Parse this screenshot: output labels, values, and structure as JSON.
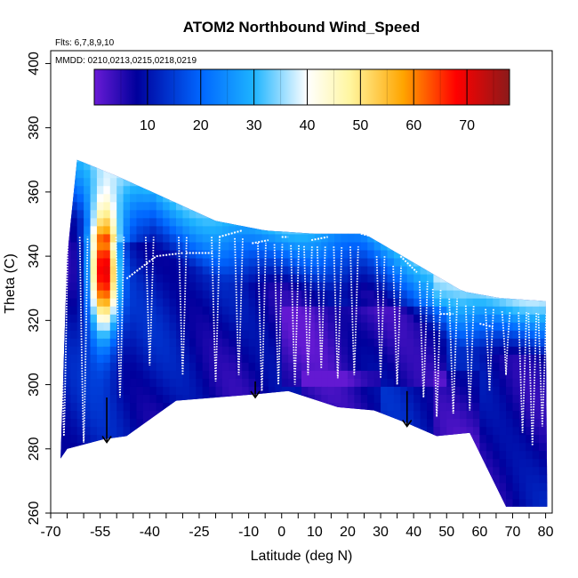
{
  "chart_data": {
    "type": "heatmap",
    "title": "ATOM2 Northbound Wind_Speed",
    "subtitle_flights": "Flts: 6,7,8,9,10",
    "subtitle_dates": "MMDD: 0210,0213,0215,0218,0219",
    "xlabel": "Latitude (deg N)",
    "ylabel": "Theta (C)",
    "xlim": [
      -70,
      82
    ],
    "ylim": [
      260,
      404
    ],
    "x_major_ticks": [
      -70,
      -55,
      -40,
      -25,
      -10,
      0,
      10,
      20,
      30,
      40,
      50,
      60,
      70,
      80
    ],
    "x_minor_step": 5,
    "y_ticks": [
      260,
      280,
      300,
      320,
      340,
      360,
      380,
      400
    ],
    "colorbar": {
      "range": [
        0,
        78
      ],
      "ticks": [
        10,
        20,
        30,
        40,
        50,
        60,
        70
      ],
      "colors": [
        "#6a1bd6",
        "#00009c",
        "#0066ff",
        "#1eb4ff",
        "#ffffff",
        "#fff6a0",
        "#ffa500",
        "#ff0000",
        "#8b1a1a"
      ],
      "color_stops": [
        0,
        8,
        20,
        30,
        40,
        48,
        58,
        68,
        78
      ]
    },
    "ceiling_theta": [
      {
        "lat": -62,
        "theta": 370
      },
      {
        "lat": -50,
        "theta": 365
      },
      {
        "lat": -35,
        "theta": 358
      },
      {
        "lat": -20,
        "theta": 351
      },
      {
        "lat": -5,
        "theta": 348
      },
      {
        "lat": 10,
        "theta": 347
      },
      {
        "lat": 25,
        "theta": 347
      },
      {
        "lat": 40,
        "theta": 338
      },
      {
        "lat": 55,
        "theta": 329
      },
      {
        "lat": 66,
        "theta": 327
      },
      {
        "lat": 80,
        "theta": 326
      }
    ],
    "floor_theta": [
      {
        "lat": -67,
        "theta": 277
      },
      {
        "lat": -65,
        "theta": 280
      },
      {
        "lat": -54,
        "theta": 283
      },
      {
        "lat": -47,
        "theta": 284
      },
      {
        "lat": -32,
        "theta": 295
      },
      {
        "lat": -8,
        "theta": 297
      },
      {
        "lat": 2,
        "theta": 298
      },
      {
        "lat": 17,
        "theta": 293
      },
      {
        "lat": 28,
        "theta": 292
      },
      {
        "lat": 38,
        "theta": 288
      },
      {
        "lat": 47,
        "theta": 284
      },
      {
        "lat": 57,
        "theta": 285
      },
      {
        "lat": 68,
        "theta": 262
      },
      {
        "lat": 82,
        "theta": 262
      }
    ],
    "jet": {
      "lat": -54,
      "theta": 335,
      "peak_speed": 72
    },
    "arrows": [
      {
        "lat": -53,
        "theta_top": 296,
        "theta_tip": 282
      },
      {
        "lat": -8,
        "theta_top": 301,
        "theta_tip": 296
      },
      {
        "lat": 38,
        "theta_top": 298,
        "theta_tip": 287
      }
    ],
    "track_top_segments": [
      {
        "lat0": -47,
        "lat1": -38,
        "theta0": 333,
        "theta1": 340
      },
      {
        "lat0": -38,
        "lat1": -30,
        "theta0": 340,
        "theta1": 341
      },
      {
        "lat0": -29,
        "lat1": -21,
        "theta0": 341,
        "theta1": 341
      },
      {
        "lat0": -19,
        "lat1": -12,
        "theta0": 346,
        "theta1": 348
      },
      {
        "lat0": -9,
        "lat1": -4,
        "theta0": 344,
        "theta1": 345
      },
      {
        "lat0": 0,
        "lat1": 2,
        "theta0": 346,
        "theta1": 346
      },
      {
        "lat0": 9,
        "lat1": 14,
        "theta0": 345,
        "theta1": 346
      },
      {
        "lat0": 24,
        "lat1": 28,
        "theta0": 347,
        "theta1": 346
      },
      {
        "lat0": 36,
        "lat1": 41,
        "theta0": 340,
        "theta1": 335
      },
      {
        "lat0": 48,
        "lat1": 52,
        "theta0": 322,
        "theta1": 322
      },
      {
        "lat0": 60,
        "lat1": 64,
        "theta0": 319,
        "theta1": 318
      }
    ],
    "track_dives": [
      {
        "lat": -66,
        "theta_bottom": 284
      },
      {
        "lat": -60,
        "theta_bottom": 282
      },
      {
        "lat": -49,
        "theta_bottom": 296
      },
      {
        "lat": -40,
        "theta_bottom": 306
      },
      {
        "lat": -30,
        "theta_bottom": 303
      },
      {
        "lat": -20,
        "theta_bottom": 301
      },
      {
        "lat": -13,
        "theta_bottom": 303
      },
      {
        "lat": -6,
        "theta_bottom": 298
      },
      {
        "lat": -1,
        "theta_bottom": 300
      },
      {
        "lat": 4,
        "theta_bottom": 300
      },
      {
        "lat": 8,
        "theta_bottom": 303
      },
      {
        "lat": 12,
        "theta_bottom": 305
      },
      {
        "lat": 17,
        "theta_bottom": 302
      },
      {
        "lat": 22,
        "theta_bottom": 303
      },
      {
        "lat": 30,
        "theta_bottom": 302
      },
      {
        "lat": 35,
        "theta_bottom": 300
      },
      {
        "lat": 43,
        "theta_bottom": 296
      },
      {
        "lat": 47,
        "theta_bottom": 290
      },
      {
        "lat": 52,
        "theta_bottom": 291
      },
      {
        "lat": 57,
        "theta_bottom": 292
      },
      {
        "lat": 63,
        "theta_bottom": 298
      },
      {
        "lat": 68,
        "theta_bottom": 303
      },
      {
        "lat": 73,
        "theta_bottom": 285
      },
      {
        "lat": 76,
        "theta_bottom": 281
      },
      {
        "lat": 79,
        "theta_bottom": 287
      }
    ]
  }
}
